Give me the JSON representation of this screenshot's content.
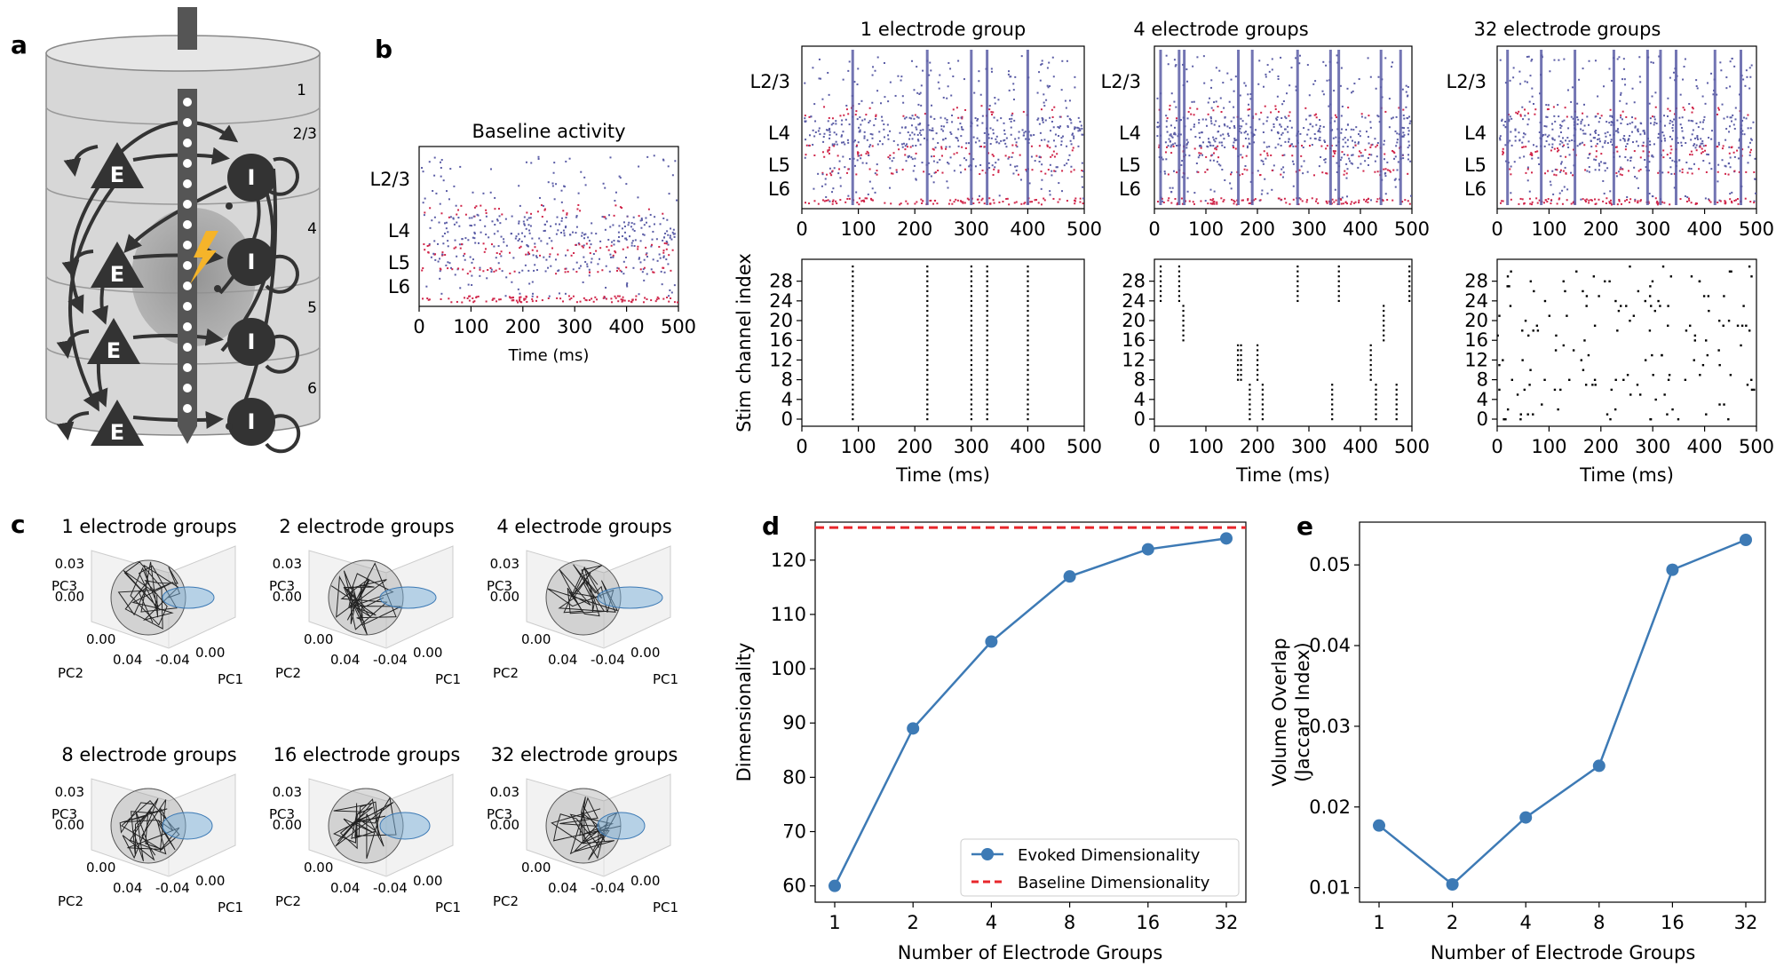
{
  "panels": {
    "a": "a",
    "b": "b",
    "c": "c",
    "d": "d",
    "e": "e"
  },
  "panel_a": {
    "layer_labels": [
      "1",
      "2/3",
      "4",
      "5",
      "6"
    ],
    "exc_label": "E",
    "inh_label": "I"
  },
  "colors": {
    "exc": "#5b5da6",
    "inh": "#d0264a",
    "line": "#3d7ab5",
    "baseline": "#e8262b",
    "stim": "#000000"
  },
  "chart_data": [
    {
      "type": "scatter",
      "id": "baseline-raster",
      "title": "Baseline activity",
      "xlabel": "Time (ms)",
      "xlim": [
        0,
        500
      ],
      "xticks": [
        "0",
        "100",
        "200",
        "300",
        "400",
        "500"
      ],
      "yticklabels": [
        "L2/3",
        "L4",
        "L5",
        "L6"
      ],
      "stim_times": []
    },
    {
      "type": "scatter",
      "id": "raster-1group",
      "title": "1 electrode group",
      "xlim": [
        0,
        500
      ],
      "xticks": [
        "0",
        "100",
        "200",
        "300",
        "400",
        "500"
      ],
      "yticklabels": [
        "L2/3",
        "L4",
        "L5",
        "L6"
      ],
      "stim_times": [
        90,
        222,
        300,
        328,
        400
      ]
    },
    {
      "type": "scatter",
      "id": "raster-4groups",
      "title": "4 electrode groups",
      "xlim": [
        0,
        500
      ],
      "xticks": [
        "0",
        "100",
        "200",
        "300",
        "400",
        "500"
      ],
      "yticklabels": [
        "L2/3",
        "L4",
        "L5",
        "L6"
      ],
      "stim_times": [
        12,
        48,
        58,
        163,
        190,
        278,
        342,
        358,
        440,
        478
      ]
    },
    {
      "type": "scatter",
      "id": "raster-32groups",
      "title": "32 electrode groups",
      "xlim": [
        0,
        500
      ],
      "xticks": [
        "0",
        "100",
        "200",
        "300",
        "400",
        "500"
      ],
      "yticklabels": [
        "L2/3",
        "L4",
        "L5",
        "L6"
      ],
      "stim_times": [
        20,
        85,
        150,
        225,
        290,
        315,
        345,
        420,
        470
      ]
    },
    {
      "type": "scatter",
      "id": "stim-1group",
      "xlabel": "Time (ms)",
      "ylabel": "Stim channel index",
      "xlim": [
        0,
        500
      ],
      "ylim": [
        0,
        31
      ],
      "xticks": [
        "0",
        "100",
        "200",
        "300",
        "400",
        "500"
      ],
      "yticks": [
        "0",
        "4",
        "8",
        "12",
        "16",
        "20",
        "24",
        "28"
      ],
      "columns": [
        {
          "t": 90,
          "lo": 0,
          "hi": 31
        },
        {
          "t": 222,
          "lo": 0,
          "hi": 31
        },
        {
          "t": 300,
          "lo": 0,
          "hi": 31
        },
        {
          "t": 328,
          "lo": 0,
          "hi": 31
        },
        {
          "t": 400,
          "lo": 0,
          "hi": 31
        }
      ]
    },
    {
      "type": "scatter",
      "id": "stim-4groups",
      "xlabel": "Time (ms)",
      "xlim": [
        0,
        500
      ],
      "ylim": [
        0,
        31
      ],
      "xticks": [
        "0",
        "100",
        "200",
        "300",
        "400",
        "500"
      ],
      "yticks": [
        "0",
        "4",
        "8",
        "12",
        "16",
        "20",
        "24",
        "28"
      ],
      "columns": [
        {
          "t": 12,
          "lo": 24,
          "hi": 31
        },
        {
          "t": 48,
          "lo": 24,
          "hi": 31
        },
        {
          "t": 56,
          "lo": 16,
          "hi": 23
        },
        {
          "t": 162,
          "lo": 8,
          "hi": 15
        },
        {
          "t": 168,
          "lo": 8,
          "hi": 15
        },
        {
          "t": 185,
          "lo": 0,
          "hi": 7
        },
        {
          "t": 200,
          "lo": 8,
          "hi": 15
        },
        {
          "t": 210,
          "lo": 0,
          "hi": 7
        },
        {
          "t": 278,
          "lo": 24,
          "hi": 31
        },
        {
          "t": 345,
          "lo": 0,
          "hi": 7
        },
        {
          "t": 358,
          "lo": 24,
          "hi": 31
        },
        {
          "t": 420,
          "lo": 8,
          "hi": 15
        },
        {
          "t": 430,
          "lo": 0,
          "hi": 7
        },
        {
          "t": 445,
          "lo": 16,
          "hi": 23
        },
        {
          "t": 470,
          "lo": 0,
          "hi": 7
        },
        {
          "t": 495,
          "lo": 24,
          "hi": 31
        }
      ]
    },
    {
      "type": "scatter",
      "id": "stim-32groups",
      "xlabel": "Time (ms)",
      "xlim": [
        0,
        500
      ],
      "ylim": [
        0,
        31
      ],
      "xticks": [
        "0",
        "100",
        "200",
        "300",
        "400",
        "500"
      ],
      "yticks": [
        "0",
        "4",
        "8",
        "12",
        "16",
        "20",
        "24",
        "28"
      ],
      "random_points": 150
    },
    {
      "type": "line",
      "id": "pca-plots",
      "titles": [
        "1 electrode groups",
        "2 electrode groups",
        "4 electrode groups",
        "8 electrode groups",
        "16 electrode groups",
        "32 electrode groups"
      ],
      "axis_labels": {
        "pc1": "PC1",
        "pc2": "PC2",
        "pc3": "PC3"
      },
      "pc3_ticks": [
        "0.03",
        "0.00"
      ],
      "pc2_ticks": [
        "0.00",
        "0.04"
      ],
      "pc1_ticks": [
        "0.00",
        "-0.04"
      ]
    },
    {
      "type": "line",
      "id": "dimensionality",
      "xlabel": "Number of Electrode Groups",
      "ylabel": "Dimensionality",
      "categories": [
        "1",
        "2",
        "4",
        "8",
        "16",
        "32"
      ],
      "series": [
        {
          "name": "Evoked Dimensionality",
          "values": [
            60,
            89,
            105,
            117,
            122,
            124
          ]
        }
      ],
      "baseline": {
        "name": "Baseline Dimensionality",
        "value": 126
      },
      "ylim": [
        57,
        127
      ],
      "yticks": [
        "60",
        "70",
        "80",
        "90",
        "100",
        "110",
        "120"
      ],
      "legend": "lower-right"
    },
    {
      "type": "line",
      "id": "volume-overlap",
      "xlabel": "Number of Electrode Groups",
      "ylabel": "Volume Overlap",
      "ylabel2": "(Jaccard Index)",
      "categories": [
        "1",
        "2",
        "4",
        "8",
        "16",
        "32"
      ],
      "series": [
        {
          "name": "Volume Overlap",
          "values": [
            0.0177,
            0.0104,
            0.0187,
            0.0251,
            0.0494,
            0.0531
          ]
        }
      ],
      "ylim": [
        0.0082,
        0.0553
      ],
      "yticks": [
        "0.01",
        "0.02",
        "0.03",
        "0.04",
        "0.05"
      ]
    }
  ]
}
